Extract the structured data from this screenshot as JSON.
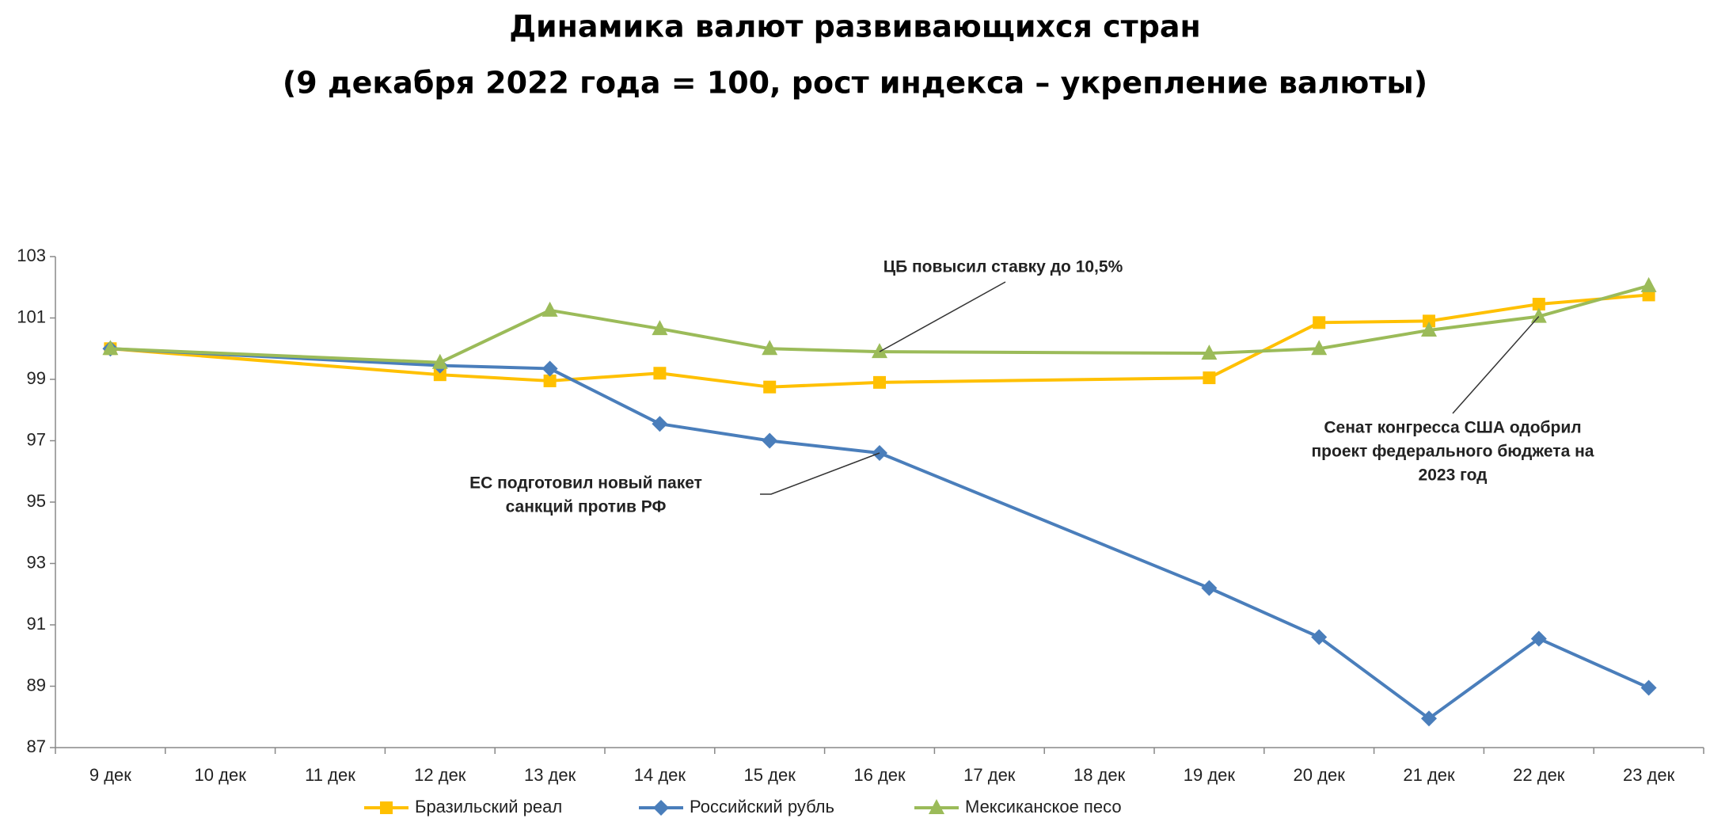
{
  "chart_data": {
    "type": "line",
    "title": "Динамика валют развивающихся стран",
    "subtitle": "(9 декабря 2022 года = 100, рост индекса – укрепление валюты)",
    "categories": [
      "9 дек",
      "10 дек",
      "11 дек",
      "12 дек",
      "13 дек",
      "14 дек",
      "15 дек",
      "16 дек",
      "17 дек",
      "18 дек",
      "19 дек",
      "20 дек",
      "21 дек",
      "22 дек",
      "23 дек"
    ],
    "series": [
      {
        "name": "Бразильский реал",
        "color": "#ffc000",
        "marker": "square",
        "values": [
          100,
          null,
          null,
          99.15,
          98.95,
          99.2,
          98.75,
          98.9,
          null,
          null,
          99.05,
          100.85,
          100.9,
          101.45,
          101.75
        ]
      },
      {
        "name": "Российский рубль",
        "color": "#4a7ebb",
        "marker": "diamond",
        "values": [
          100,
          null,
          null,
          99.45,
          99.35,
          97.55,
          97.0,
          96.6,
          null,
          null,
          92.2,
          90.6,
          87.95,
          90.55,
          88.95
        ]
      },
      {
        "name": "Мексиканское песо",
        "color": "#9bbb59",
        "marker": "triangle",
        "values": [
          100,
          null,
          null,
          99.55,
          101.25,
          100.65,
          100.0,
          99.9,
          null,
          null,
          99.85,
          100.0,
          100.6,
          101.05,
          102.05
        ]
      }
    ],
    "ylim": [
      87,
      103
    ],
    "yticks": [
      87,
      89,
      91,
      93,
      95,
      97,
      99,
      101,
      103
    ],
    "grid": false,
    "legend": "bottom",
    "annotations": [
      {
        "text": [
          "ЦБ повысил ставку до 10,5%"
        ]
      },
      {
        "text": [
          "ЕС подготовил новый пакет",
          "санкций против РФ"
        ]
      },
      {
        "text": [
          "Сенат конгресса США одобрил",
          "проект федерального бюджета на",
          "2023 год"
        ]
      }
    ]
  }
}
